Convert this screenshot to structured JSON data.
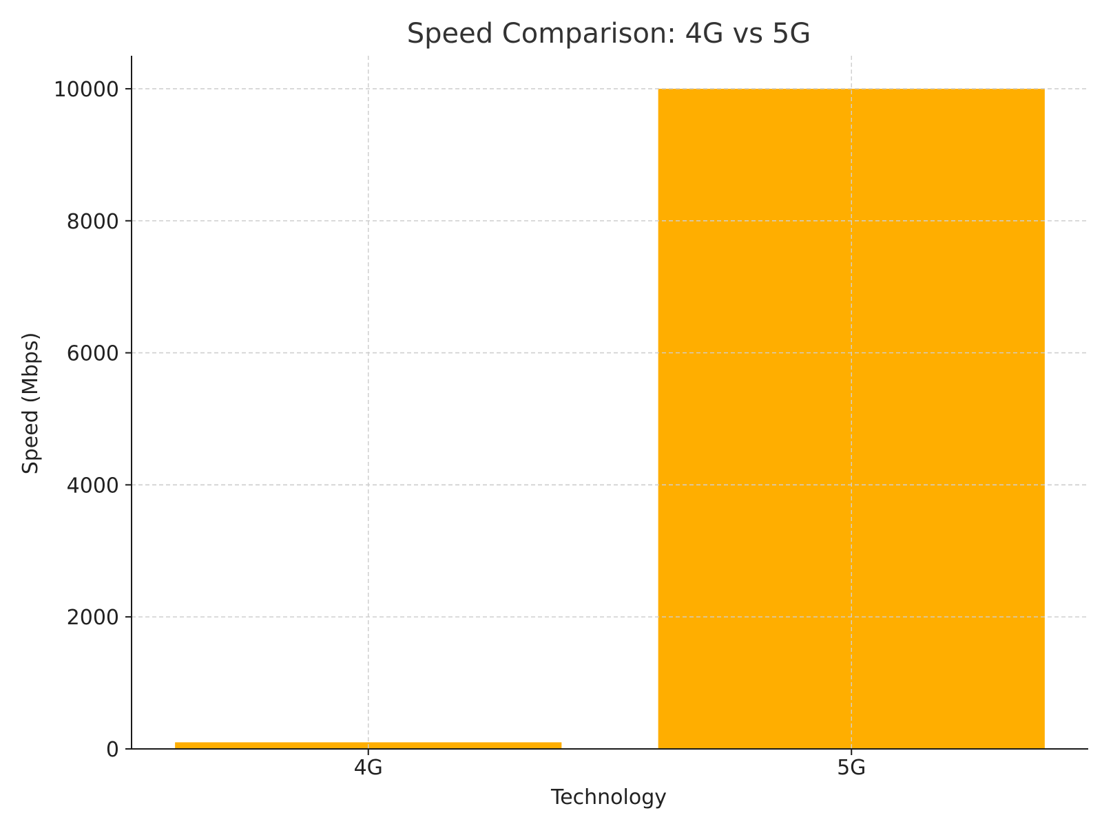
{
  "chart_data": {
    "type": "bar",
    "title": "Speed Comparison: 4G vs 5G",
    "xlabel": "Technology",
    "ylabel": "Speed (Mbps)",
    "categories": [
      "4G",
      "5G"
    ],
    "values": [
      100,
      10000
    ],
    "ylim": [
      0,
      10500
    ],
    "yticks": [
      0,
      2000,
      4000,
      6000,
      8000,
      10000
    ],
    "grid": true,
    "bar_color": "#FFAE00"
  }
}
